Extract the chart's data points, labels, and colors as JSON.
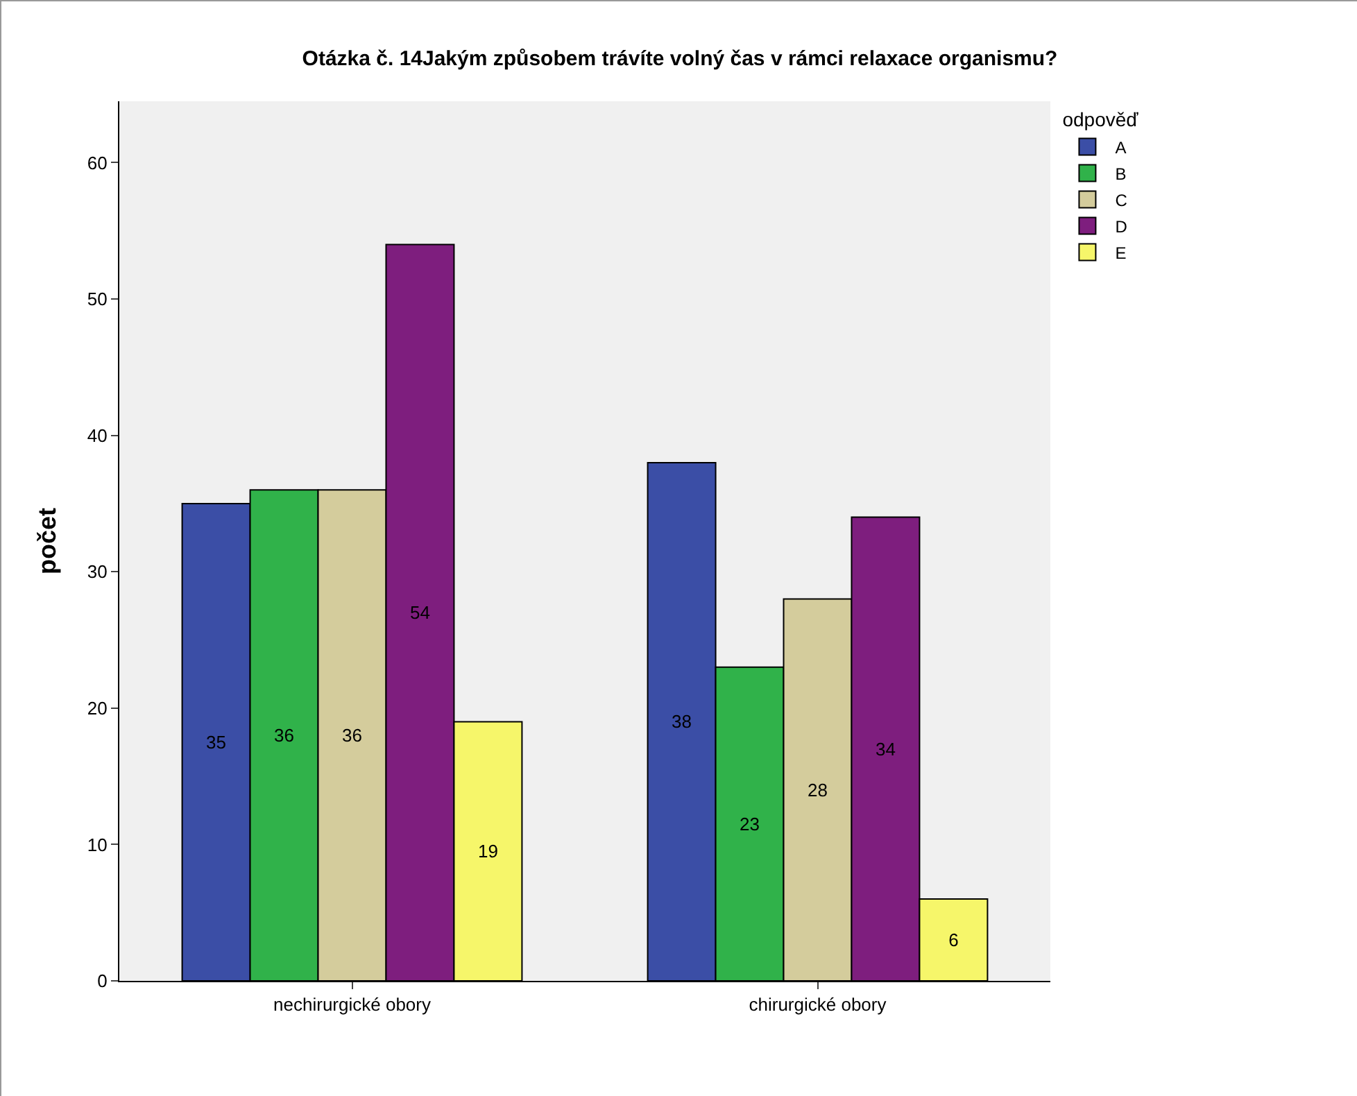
{
  "chart_data": {
    "type": "bar",
    "title": "Otázka č. 14Jakým způsobem trávíte volný čas v rámci relaxace organismu?",
    "ylabel": "počet",
    "legend_title": "odpověď",
    "categories": [
      "nechirurgické obory",
      "chirurgické obory"
    ],
    "series": [
      {
        "name": "A",
        "color": "#3b4ea6",
        "values": [
          35,
          38
        ]
      },
      {
        "name": "B",
        "color": "#30b24a",
        "values": [
          36,
          23
        ]
      },
      {
        "name": "C",
        "color": "#d4cc9c",
        "values": [
          36,
          28
        ]
      },
      {
        "name": "D",
        "color": "#7e1e7e",
        "values": [
          54,
          34
        ]
      },
      {
        "name": "E",
        "color": "#f6f66a",
        "values": [
          19,
          6
        ]
      }
    ],
    "ylim": [
      0,
      64.5
    ],
    "yticks": [
      0,
      10,
      20,
      30,
      40,
      50,
      60
    ],
    "grid": false,
    "legend": "top right",
    "data_labels": true
  }
}
